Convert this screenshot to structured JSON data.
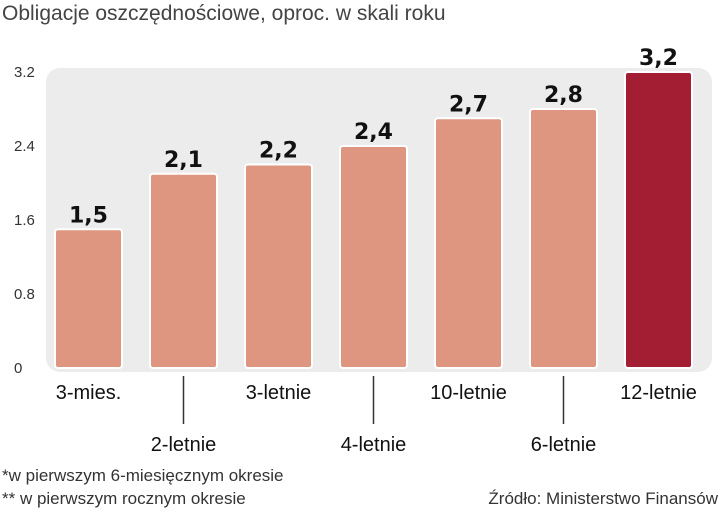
{
  "title": "Obligacje oszczędnościowe, oproc. w skali roku",
  "footnotes": [
    "*w pierwszym 6-miesięcznym okresie",
    "** w pierwszym rocznym okresie"
  ],
  "source": "Źródło: Ministerstwo Finansów",
  "colors": {
    "bar": "#de9680",
    "highlight": "#a31d33",
    "panel": "#ececec"
  },
  "chart_data": {
    "type": "bar",
    "categories": [
      "3-mies.",
      "2-letnie",
      "3-letnie",
      "4-letnie",
      "10-letnie",
      "6-letnie",
      "12-letnie"
    ],
    "values": [
      1.5,
      2.1,
      2.2,
      2.4,
      2.7,
      2.8,
      3.2
    ],
    "value_labels": [
      "1,5",
      "2,1",
      "2,2",
      "2,4",
      "2,7",
      "2,8",
      "3,2"
    ],
    "highlight_index": 6,
    "ylim": [
      0,
      3.2
    ],
    "yticks": [
      0,
      0.8,
      1.6,
      2.4,
      3.2
    ],
    "ytick_labels": [
      "0",
      "0.8",
      "1.6",
      "2.4",
      "3.2"
    ],
    "grid": false,
    "legend": "none"
  }
}
